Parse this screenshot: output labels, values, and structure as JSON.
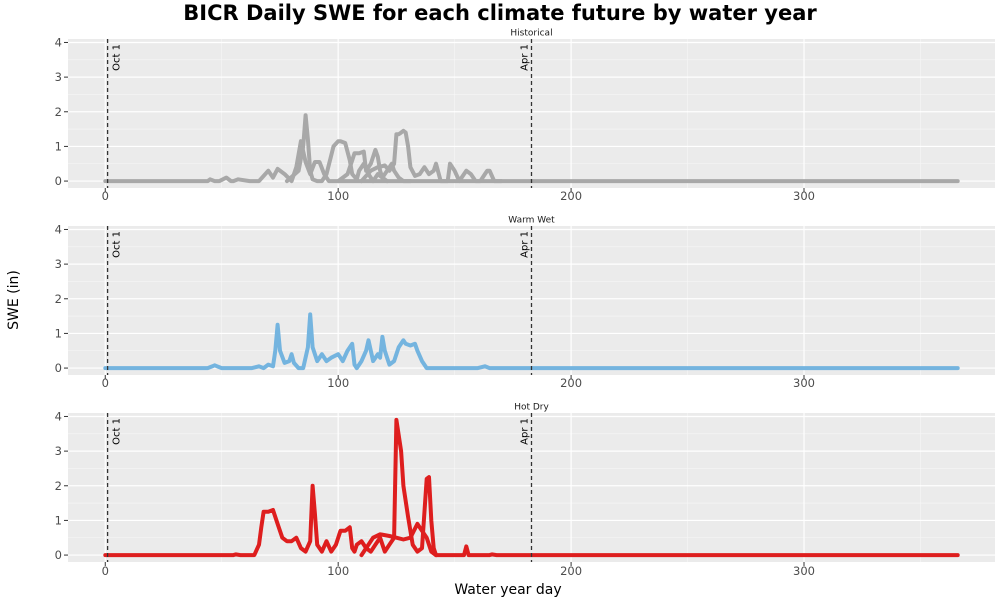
{
  "chart_data": {
    "type": "line",
    "title": "BICR Daily SWE for each climate future by water year",
    "xlabel": "Water year day",
    "ylabel": "SWE (in)",
    "xlim": [
      -16,
      382
    ],
    "ylim": [
      -0.2,
      4.1
    ],
    "x_ticks": [
      0,
      100,
      200,
      300
    ],
    "y_ticks": [
      0,
      1,
      2,
      3,
      4
    ],
    "grid": true,
    "annotations": [
      {
        "x": 1,
        "label": "Oct 1"
      },
      {
        "x": 183,
        "label": "Apr 1"
      }
    ],
    "panels": [
      {
        "name": "Historical",
        "color": "#a8a8a8",
        "series": [
          {
            "x": [
              0,
              44,
              45,
              47,
              49,
              52,
              54,
              55,
              57,
              62,
              66,
              68,
              70,
              72,
              74,
              77,
              80,
              82,
              84,
              86,
              88,
              90,
              92,
              94,
              96,
              100,
              110,
              130,
              160,
              366
            ],
            "y": [
              0,
              0,
              0.05,
              0,
              0,
              0.1,
              0,
              0,
              0.05,
              0,
              0,
              0.15,
              0.3,
              0.1,
              0.35,
              0.2,
              0,
              0.4,
              1.15,
              0.55,
              0.2,
              0.55,
              0.55,
              0.2,
              0,
              0,
              0,
              0,
              0,
              0
            ]
          },
          {
            "x": [
              78,
              83,
              85,
              86,
              87,
              88,
              89,
              91,
              93,
              95,
              98,
              100,
              101,
              103,
              105,
              106,
              108,
              109,
              111,
              113,
              115,
              117,
              119,
              121
            ],
            "y": [
              0,
              0.3,
              1.0,
              1.9,
              1.2,
              0.3,
              0.05,
              0,
              0,
              0.2,
              1.0,
              1.15,
              1.15,
              1.1,
              0.6,
              0.2,
              0.05,
              0.3,
              0.5,
              0.2,
              0,
              0.2,
              0.1,
              0
            ]
          },
          {
            "x": [
              100,
              104,
              106,
              107,
              109,
              111,
              112,
              114,
              116,
              117,
              118,
              119,
              121,
              123,
              124,
              126,
              128,
              130,
              131
            ],
            "y": [
              0,
              0.2,
              0.6,
              0.8,
              0.8,
              0.85,
              0.3,
              0.5,
              0.9,
              0.7,
              0.3,
              0.1,
              0.3,
              0.5,
              0.3,
              0.1,
              0,
              0,
              0
            ]
          },
          {
            "x": [
              110,
              114,
              117,
              120,
              122,
              124,
              125,
              126,
              127,
              128,
              129,
              130,
              131,
              133,
              135,
              137,
              139,
              141,
              142,
              144,
              147,
              148,
              150,
              152,
              153,
              155,
              157,
              159,
              161,
              163,
              164,
              165,
              167,
              170
            ],
            "y": [
              0,
              0.3,
              0.4,
              0.45,
              0.3,
              0.5,
              1.35,
              1.35,
              1.4,
              1.45,
              1.4,
              1.0,
              0.4,
              0.15,
              0.2,
              0.4,
              0.2,
              0.3,
              0.5,
              0,
              0,
              0.5,
              0.3,
              0,
              0.1,
              0.3,
              0.2,
              0,
              0,
              0.2,
              0.3,
              0.3,
              0,
              0
            ]
          }
        ]
      },
      {
        "name": "Warm Wet",
        "color": "#74b4df",
        "series": [
          {
            "x": [
              0,
              44,
              46,
              47,
              48,
              50,
              63,
              66,
              68,
              70,
              72,
              73,
              74,
              75,
              77,
              79,
              80,
              81,
              83,
              85,
              87,
              88,
              89,
              91,
              93,
              95,
              97,
              100,
              102,
              104,
              106,
              107,
              108,
              110,
              112,
              113,
              114,
              115,
              117,
              118,
              119,
              120,
              121,
              122,
              124,
              126,
              128,
              129,
              131,
              133,
              134,
              136,
              138,
              160,
              163,
              165,
              366
            ],
            "y": [
              0,
              0,
              0.05,
              0.08,
              0.05,
              0,
              0,
              0.05,
              0,
              0.1,
              0.05,
              0.5,
              1.25,
              0.5,
              0.15,
              0.2,
              0.4,
              0.15,
              0,
              0,
              0.6,
              1.55,
              0.6,
              0.2,
              0.4,
              0.2,
              0.3,
              0.4,
              0.2,
              0.5,
              0.7,
              0.1,
              0,
              0.2,
              0.5,
              0.8,
              0.5,
              0.2,
              0.4,
              0.3,
              0.9,
              0.5,
              0.3,
              0.1,
              0.2,
              0.6,
              0.8,
              0.7,
              0.65,
              0.7,
              0.5,
              0.2,
              0,
              0,
              0.05,
              0,
              0
            ]
          }
        ]
      },
      {
        "name": "Hot Dry",
        "color": "#de1e1e",
        "series": [
          {
            "x": [
              0,
              55,
              56,
              58,
              60,
              62,
              64,
              66,
              67,
              68,
              69,
              70,
              72,
              74,
              76,
              78,
              80,
              82,
              84,
              86,
              88,
              89,
              90,
              91,
              93,
              95,
              97,
              99,
              101,
              103,
              105,
              106,
              107,
              108,
              110,
              112,
              114,
              116,
              118,
              120,
              122,
              124,
              125,
              127,
              128,
              130,
              132,
              134,
              136,
              138,
              139,
              140,
              141,
              142,
              144,
              150,
              154,
              155,
              156,
              160,
              165,
              166,
              168,
              366
            ],
            "y": [
              0,
              0,
              0.02,
              0,
              0,
              0,
              0,
              0.3,
              0.8,
              1.25,
              1.25,
              1.25,
              1.3,
              0.9,
              0.5,
              0.4,
              0.4,
              0.5,
              0.2,
              0.1,
              0.4,
              2.0,
              1.2,
              0.3,
              0.1,
              0.4,
              0.1,
              0.3,
              0.7,
              0.7,
              0.8,
              0.2,
              0.1,
              0.3,
              0.4,
              0.2,
              0.1,
              0.3,
              0.5,
              0.1,
              0.3,
              0.5,
              3.9,
              3.0,
              2.0,
              1.1,
              0.3,
              0.1,
              0.2,
              2.2,
              2.25,
              1.0,
              0.2,
              0,
              0,
              0,
              0,
              0.25,
              0,
              0,
              0,
              0.02,
              0,
              0
            ]
          },
          {
            "x": [
              110,
              115,
              118,
              122,
              125,
              128,
              131,
              134,
              136,
              138,
              140,
              142
            ],
            "y": [
              0,
              0.5,
              0.6,
              0.55,
              0.5,
              0.45,
              0.5,
              0.9,
              0.7,
              0.5,
              0.1,
              0
            ]
          }
        ]
      }
    ]
  }
}
